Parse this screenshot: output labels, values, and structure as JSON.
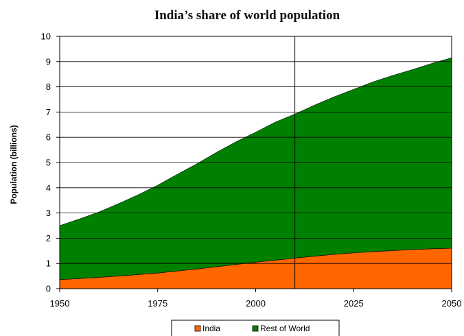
{
  "chart_data": {
    "type": "area",
    "stacked": true,
    "title": "India’s share of world population",
    "xlabel": "",
    "ylabel": "Population (billions)",
    "xlim": [
      1950,
      2050
    ],
    "ylim": [
      0,
      10
    ],
    "x_ticks": [
      "1950",
      "1975",
      "2000",
      "2025",
      "2050"
    ],
    "y_ticks": [
      "0",
      "1",
      "2",
      "3",
      "4",
      "5",
      "6",
      "7",
      "8",
      "9",
      "10"
    ],
    "grid": "horizontal",
    "reference_line_x": 2010,
    "legend_position": "bottom",
    "x": [
      1950,
      1955,
      1960,
      1965,
      1970,
      1975,
      1980,
      1985,
      1990,
      1995,
      2000,
      2005,
      2010,
      2015,
      2020,
      2025,
      2030,
      2035,
      2040,
      2045,
      2050
    ],
    "series": [
      {
        "name": "India",
        "color": "#ff6600",
        "values": [
          0.36,
          0.4,
          0.45,
          0.5,
          0.56,
          0.62,
          0.7,
          0.78,
          0.87,
          0.96,
          1.05,
          1.13,
          1.21,
          1.29,
          1.36,
          1.42,
          1.47,
          1.51,
          1.55,
          1.58,
          1.6
        ]
      },
      {
        "name": "Rest of World",
        "color": "#008000",
        "values": [
          2.14,
          2.36,
          2.59,
          2.87,
          3.16,
          3.48,
          3.83,
          4.17,
          4.53,
          4.86,
          5.15,
          5.47,
          5.71,
          5.98,
          6.24,
          6.48,
          6.73,
          6.94,
          7.13,
          7.35,
          7.55
        ]
      }
    ]
  }
}
